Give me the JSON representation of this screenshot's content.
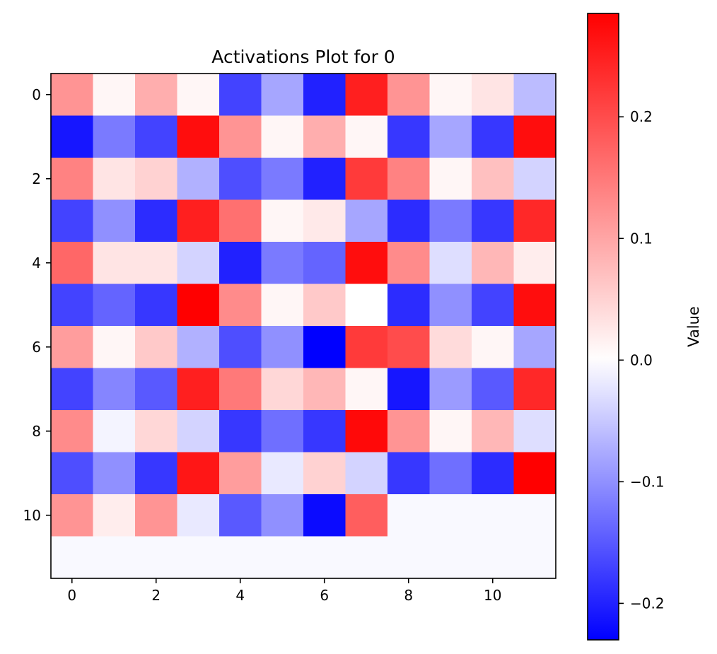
{
  "chart_data": {
    "type": "heatmap",
    "title": "Activations Plot for 0",
    "colormap": "bwr",
    "colorbar_label": "Value",
    "value_range": [
      -0.23,
      0.285
    ],
    "x_ticks": [
      0,
      2,
      4,
      6,
      8,
      10
    ],
    "y_ticks": [
      0,
      2,
      4,
      6,
      8,
      10
    ],
    "colorbar_ticks": [
      {
        "value": 0.2,
        "label": "0.2"
      },
      {
        "value": 0.1,
        "label": "0.1"
      },
      {
        "value": 0.0,
        "label": "0.0"
      },
      {
        "value": -0.1,
        "label": "−0.1"
      },
      {
        "value": -0.2,
        "label": "−0.2"
      }
    ],
    "x_range": [
      -0.5,
      11.5
    ],
    "y_range": [
      -0.5,
      11.5
    ],
    "grid": false,
    "values": [
      [
        0.12,
        0.01,
        0.09,
        0.01,
        -0.17,
        -0.08,
        -0.2,
        0.25,
        0.12,
        0.01,
        0.03,
        -0.06
      ],
      [
        -0.21,
        -0.12,
        -0.17,
        0.27,
        0.12,
        0.01,
        0.09,
        0.01,
        -0.18,
        -0.08,
        -0.18,
        0.27
      ],
      [
        0.14,
        0.03,
        0.05,
        -0.07,
        -0.16,
        -0.12,
        -0.2,
        0.22,
        0.14,
        0.01,
        0.07,
        -0.04
      ],
      [
        -0.17,
        -0.1,
        -0.19,
        0.25,
        0.16,
        0.01,
        0.025,
        -0.08,
        -0.19,
        -0.12,
        -0.18,
        0.24
      ],
      [
        0.17,
        0.03,
        0.03,
        -0.04,
        -0.2,
        -0.12,
        -0.14,
        0.27,
        0.13,
        -0.03,
        0.08,
        0.02
      ],
      [
        -0.17,
        -0.14,
        -0.18,
        0.285,
        0.13,
        0.01,
        0.06,
        0.0,
        -0.19,
        -0.1,
        -0.17,
        0.27
      ],
      [
        0.11,
        0.01,
        0.06,
        -0.07,
        -0.16,
        -0.1,
        -0.23,
        0.22,
        0.2,
        0.04,
        0.01,
        -0.08
      ],
      [
        -0.17,
        -0.11,
        -0.15,
        0.25,
        0.15,
        0.045,
        0.08,
        0.01,
        -0.21,
        -0.09,
        -0.15,
        0.24
      ],
      [
        0.13,
        -0.01,
        0.045,
        -0.04,
        -0.18,
        -0.13,
        -0.18,
        0.275,
        0.12,
        0.01,
        0.08,
        -0.03
      ],
      [
        -0.16,
        -0.1,
        -0.18,
        0.26,
        0.11,
        -0.02,
        0.05,
        -0.04,
        -0.18,
        -0.13,
        -0.19,
        0.285
      ],
      [
        0.12,
        0.02,
        0.12,
        -0.02,
        -0.15,
        -0.1,
        -0.22,
        0.18,
        -0.005,
        -0.005,
        -0.005,
        -0.005
      ],
      [
        -0.005,
        -0.005,
        -0.005,
        -0.005,
        -0.005,
        -0.005,
        -0.005,
        -0.005,
        -0.005,
        -0.005,
        -0.005,
        -0.005
      ]
    ]
  }
}
